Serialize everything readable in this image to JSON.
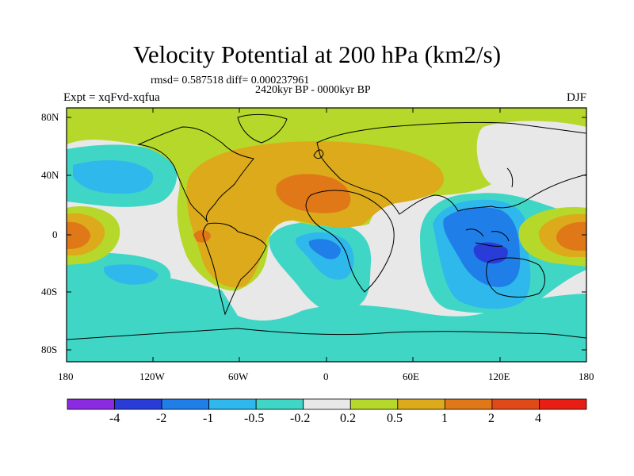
{
  "title": "Velocity Potential at 200 hPa (km2/s)",
  "stats": "rmsd= 0.587518 diff= 0.000237961",
  "period": "2420kyr BP - 0000kyr BP",
  "experiment": "Expt = xqFvd-xqfua",
  "season": "DJF",
  "lat_ticks": [
    "80N",
    "40N",
    "0",
    "40S",
    "80S"
  ],
  "lon_ticks": [
    "180",
    "120W",
    "60W",
    "0",
    "60E",
    "120E",
    "180"
  ],
  "colorbar": {
    "labels": [
      "-4",
      "-2",
      "-1",
      "-0.5",
      "-0.2",
      "0.2",
      "0.5",
      "1",
      "2",
      "4"
    ],
    "colors": [
      "#8a2be2",
      "#2a3cd8",
      "#1f7ee8",
      "#2fb8ec",
      "#3fd6c6",
      "#e8e8e8",
      "#b6d82a",
      "#dcaa1a",
      "#e07818",
      "#e04a18",
      "#e81e14"
    ]
  }
}
